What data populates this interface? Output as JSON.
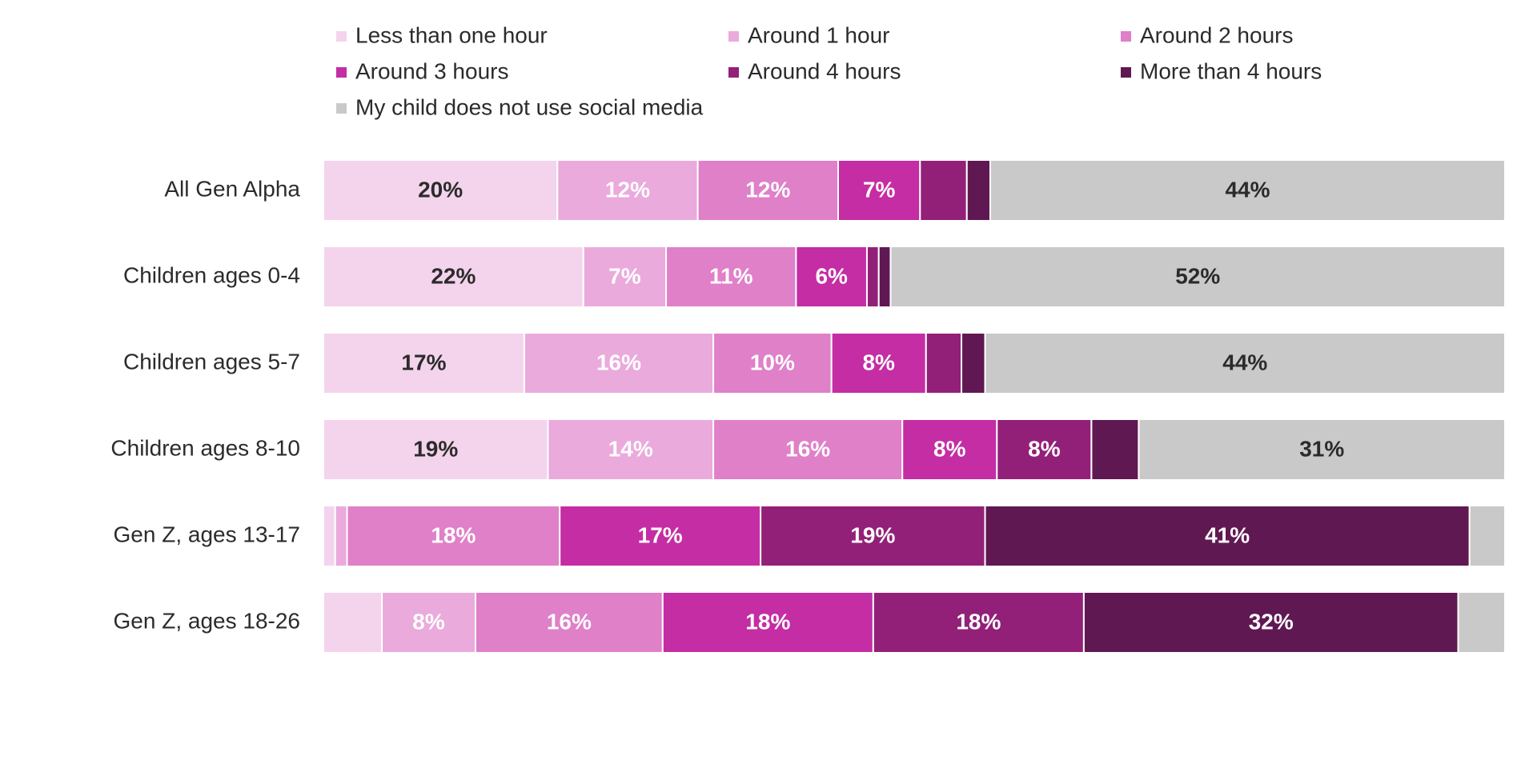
{
  "chart_data": {
    "type": "bar",
    "orientation": "horizontal",
    "stacked": true,
    "legend_position": "top",
    "series": [
      {
        "name": "Less than one hour",
        "color": "#F4D4EC"
      },
      {
        "name": "Around 1 hour",
        "color": "#EAAADC"
      },
      {
        "name": "Around 2 hours",
        "color": "#DF80C8"
      },
      {
        "name": "Around 3 hours",
        "color": "#C42DA4"
      },
      {
        "name": "Around 4 hours",
        "color": "#922078"
      },
      {
        "name": "More than 4 hours",
        "color": "#601852"
      },
      {
        "name": "My child does not use social media",
        "color": "#C9C9C9"
      }
    ],
    "categories": [
      "All Gen Alpha",
      "Children ages 0-4",
      "Children ages 5-7",
      "Children ages 8-10",
      "Gen Z, ages 13-17",
      "Gen Z, ages 18-26"
    ],
    "values": [
      [
        20,
        12,
        12,
        7,
        4,
        2,
        44
      ],
      [
        22,
        7,
        11,
        6,
        1,
        1,
        52
      ],
      [
        17,
        16,
        10,
        8,
        3,
        2,
        44
      ],
      [
        19,
        14,
        16,
        8,
        8,
        4,
        31
      ],
      [
        1,
        1,
        18,
        17,
        19,
        41,
        3
      ],
      [
        5,
        8,
        16,
        18,
        18,
        32,
        4
      ]
    ],
    "labels": [
      [
        "20%",
        "12%",
        "12%",
        "7%",
        "",
        "",
        "44%"
      ],
      [
        "22%",
        "7%",
        "11%",
        "6%",
        "",
        "",
        "52%"
      ],
      [
        "17%",
        "16%",
        "10%",
        "8%",
        "",
        "",
        "44%"
      ],
      [
        "19%",
        "14%",
        "16%",
        "8%",
        "8%",
        "",
        "31%"
      ],
      [
        "",
        "",
        "18%",
        "17%",
        "19%",
        "41%",
        ""
      ],
      [
        "",
        "8%",
        "16%",
        "18%",
        "18%",
        "32%",
        ""
      ]
    ],
    "label_text_colors": [
      "#2B2B2B",
      "#FFFFFF",
      "#FFFFFF",
      "#FFFFFF",
      "#FFFFFF",
      "#FFFFFF",
      "#2B2B2B"
    ],
    "axis_text_color": "#2B2B2B"
  }
}
